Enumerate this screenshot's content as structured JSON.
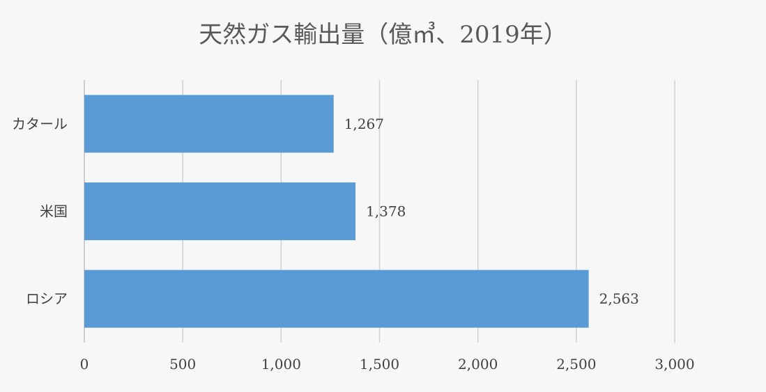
{
  "chart_data": {
    "type": "bar",
    "orientation": "horizontal",
    "title": "天然ガス輸出量（億㎥、2019年）",
    "categories": [
      "カタール",
      "米国",
      "ロシア"
    ],
    "values": [
      1267,
      1378,
      2563
    ],
    "value_labels": [
      "1,267",
      "1,378",
      "2,563"
    ],
    "xlim": [
      0,
      3000
    ],
    "xticks": [
      0,
      500,
      1000,
      1500,
      2000,
      2500,
      3000
    ],
    "xtick_labels": [
      "0",
      "500",
      "1,000",
      "1,500",
      "2,000",
      "2,500",
      "3,000"
    ],
    "xlabel": "",
    "ylabel": "",
    "grid": true,
    "legend": "none",
    "colors": {
      "bar": "#5b9bd5",
      "background": "#f7f7f7"
    }
  }
}
